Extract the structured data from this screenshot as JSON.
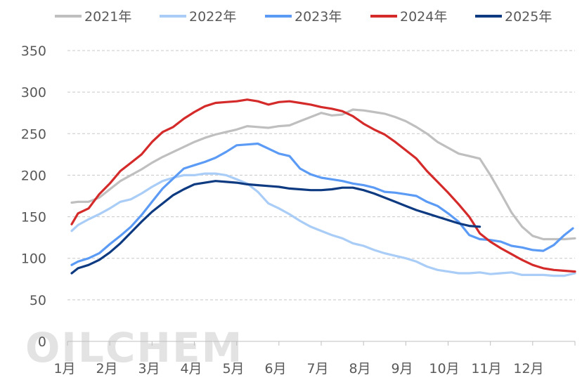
{
  "chart_data": {
    "type": "line",
    "title": "",
    "xlabel": "",
    "ylabel": "",
    "ylim": [
      0,
      350
    ],
    "yticks": [
      0,
      50,
      100,
      150,
      200,
      250,
      300,
      350
    ],
    "xlim": [
      0,
      12
    ],
    "month_labels": [
      "1月",
      "2月",
      "3月",
      "4月",
      "5月",
      "6月",
      "7月",
      "8月",
      "9月",
      "10月",
      "11月",
      "12月"
    ],
    "grid": "horizontal dashed",
    "legend_position": "top",
    "watermark": "OILCHEM",
    "series": [
      {
        "name": "2021年",
        "color": "#bfbfbf",
        "x": [
          0.1,
          0.25,
          0.5,
          0.75,
          1.0,
          1.25,
          1.5,
          1.75,
          2.0,
          2.25,
          2.5,
          2.75,
          3.0,
          3.25,
          3.5,
          3.75,
          4.0,
          4.25,
          4.5,
          4.75,
          5.0,
          5.25,
          5.5,
          5.75,
          6.0,
          6.25,
          6.5,
          6.75,
          7.0,
          7.25,
          7.5,
          7.75,
          8.0,
          8.25,
          8.5,
          8.75,
          9.0,
          9.25,
          9.5,
          9.75,
          10.0,
          10.25,
          10.5,
          10.75,
          11.0,
          11.25,
          11.5,
          11.75,
          12.0
        ],
        "y": [
          167,
          168,
          168,
          173,
          183,
          193,
          200,
          207,
          215,
          222,
          228,
          234,
          240,
          245,
          249,
          252,
          255,
          259,
          258,
          257,
          259,
          260,
          265,
          270,
          275,
          272,
          273,
          279,
          278,
          276,
          274,
          270,
          265,
          258,
          250,
          240,
          233,
          226,
          223,
          220,
          200,
          178,
          155,
          138,
          127,
          123,
          123,
          123,
          124
        ]
      },
      {
        "name": "2022年",
        "color": "#a9cdf7",
        "x": [
          0.1,
          0.25,
          0.5,
          0.75,
          1.0,
          1.25,
          1.5,
          1.75,
          2.0,
          2.25,
          2.5,
          2.75,
          3.0,
          3.25,
          3.5,
          3.75,
          4.0,
          4.25,
          4.5,
          4.75,
          5.0,
          5.25,
          5.5,
          5.75,
          6.0,
          6.25,
          6.5,
          6.75,
          7.0,
          7.25,
          7.5,
          7.75,
          8.0,
          8.25,
          8.5,
          8.75,
          9.0,
          9.25,
          9.5,
          9.75,
          10.0,
          10.25,
          10.5,
          10.75,
          11.0,
          11.25,
          11.5,
          11.75,
          12.0
        ],
        "y": [
          133,
          140,
          147,
          153,
          160,
          168,
          171,
          178,
          186,
          193,
          197,
          200,
          200,
          202,
          202,
          200,
          195,
          190,
          180,
          166,
          160,
          153,
          145,
          138,
          133,
          128,
          124,
          118,
          115,
          110,
          106,
          103,
          100,
          96,
          90,
          86,
          84,
          82,
          82,
          83,
          81,
          82,
          83,
          80,
          80,
          80,
          79,
          79,
          82
        ]
      },
      {
        "name": "2023年",
        "color": "#5b9bf5",
        "x": [
          0.1,
          0.25,
          0.5,
          0.75,
          1.0,
          1.25,
          1.5,
          1.75,
          2.0,
          2.25,
          2.5,
          2.75,
          3.0,
          3.25,
          3.5,
          3.75,
          4.0,
          4.25,
          4.5,
          4.75,
          5.0,
          5.25,
          5.5,
          5.75,
          6.0,
          6.25,
          6.5,
          6.75,
          7.0,
          7.25,
          7.5,
          7.75,
          8.0,
          8.25,
          8.5,
          8.75,
          9.0,
          9.25,
          9.5,
          9.75,
          10.0,
          10.25,
          10.5,
          10.75,
          11.0,
          11.25,
          11.5,
          11.75,
          11.95
        ],
        "y": [
          92,
          96,
          100,
          106,
          117,
          127,
          138,
          152,
          168,
          184,
          196,
          208,
          212,
          216,
          221,
          228,
          236,
          237,
          238,
          232,
          226,
          223,
          208,
          201,
          197,
          195,
          193,
          190,
          188,
          185,
          180,
          179,
          177,
          175,
          168,
          163,
          154,
          144,
          128,
          123,
          122,
          120,
          115,
          113,
          110,
          109,
          116,
          128,
          136
        ]
      },
      {
        "name": "2024年",
        "color": "#d42a2a",
        "x": [
          0.1,
          0.25,
          0.5,
          0.75,
          1.0,
          1.25,
          1.5,
          1.75,
          2.0,
          2.25,
          2.5,
          2.75,
          3.0,
          3.25,
          3.5,
          3.75,
          4.0,
          4.25,
          4.5,
          4.75,
          5.0,
          5.25,
          5.5,
          5.75,
          6.0,
          6.25,
          6.5,
          6.75,
          7.0,
          7.25,
          7.5,
          7.75,
          8.0,
          8.25,
          8.5,
          8.75,
          9.0,
          9.25,
          9.5,
          9.75,
          10.0,
          10.25,
          10.5,
          10.75,
          11.0,
          11.25,
          11.5,
          11.75,
          12.0
        ],
        "y": [
          141,
          154,
          160,
          177,
          190,
          205,
          215,
          225,
          240,
          252,
          258,
          268,
          276,
          283,
          287,
          288,
          289,
          291,
          289,
          285,
          288,
          289,
          287,
          285,
          282,
          280,
          277,
          271,
          262,
          255,
          249,
          240,
          230,
          220,
          205,
          192,
          179,
          165,
          150,
          130,
          120,
          112,
          105,
          98,
          92,
          88,
          86,
          85,
          84
        ]
      },
      {
        "name": "2025年",
        "color": "#0d3a80",
        "x": [
          0.1,
          0.25,
          0.5,
          0.75,
          1.0,
          1.25,
          1.5,
          1.75,
          2.0,
          2.25,
          2.5,
          2.75,
          3.0,
          3.25,
          3.5,
          3.75,
          4.0,
          4.25,
          4.5,
          4.75,
          5.0,
          5.25,
          5.5,
          5.75,
          6.0,
          6.25,
          6.5,
          6.75,
          7.0,
          7.25,
          7.5,
          7.75,
          8.0,
          8.25,
          8.5,
          8.75,
          9.0,
          9.25,
          9.5,
          9.75
        ],
        "y": [
          82,
          88,
          92,
          98,
          107,
          118,
          131,
          144,
          156,
          166,
          176,
          183,
          189,
          191,
          193,
          192,
          191,
          189,
          188,
          187,
          186,
          184,
          183,
          182,
          182,
          183,
          185,
          185,
          182,
          178,
          173,
          168,
          163,
          158,
          154,
          150,
          146,
          142,
          139,
          138
        ]
      }
    ]
  }
}
